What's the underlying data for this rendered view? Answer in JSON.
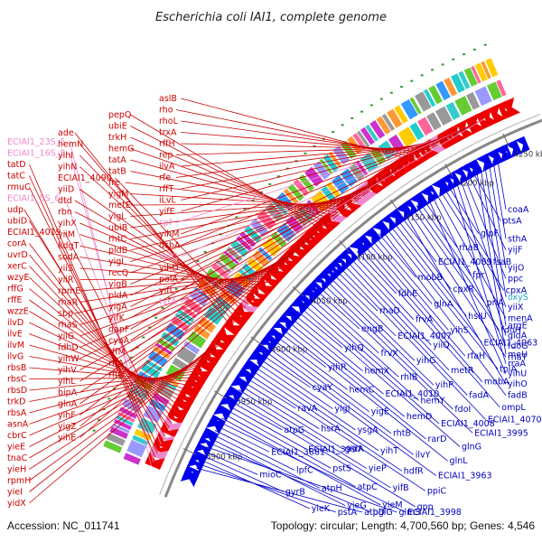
{
  "title": "Escherichia coli IAI1, complete genome",
  "footer": {
    "accession": "Accession: NC_011741",
    "topology": "Topology: circular; Length: 4,700,560 bp; Genes: 4,546"
  },
  "colors": {
    "forward": "#ee0000",
    "reverse": "#0000ee",
    "rna": "#ee88cc",
    "backbone": "#888888"
  },
  "ticks": [
    "3900 kbp",
    "3950 kbp",
    "4000 kbp",
    "4050 kbp",
    "4100 kbp",
    "4150 kbp",
    "4200 kbp",
    "4250 kbp"
  ],
  "genes_left": [
    {
      "t": "ECIAI1_23S_5",
      "c": "pink"
    },
    {
      "t": "ECIAI1_16S_5",
      "c": "pink"
    },
    {
      "t": "tatD",
      "c": "red"
    },
    {
      "t": "tatC",
      "c": "red"
    },
    {
      "t": "rmuC",
      "c": "red"
    },
    {
      "t": "ECIAI1_5S_6",
      "c": "pink"
    },
    {
      "t": "udp",
      "c": "red"
    },
    {
      "t": "ubiD",
      "c": "red"
    },
    {
      "t": "ECIAI1_4019",
      "c": "red"
    },
    {
      "t": "corA",
      "c": "red"
    },
    {
      "t": "uvrD",
      "c": "red"
    },
    {
      "t": "xerC",
      "c": "red"
    },
    {
      "t": "wzyE",
      "c": "red"
    },
    {
      "t": "rffG",
      "c": "red"
    },
    {
      "t": "rffE",
      "c": "red"
    },
    {
      "t": "wzzE",
      "c": "red"
    },
    {
      "t": "ilvD",
      "c": "red"
    },
    {
      "t": "ilvE",
      "c": "red"
    },
    {
      "t": "ilvM",
      "c": "red"
    },
    {
      "t": "ilvG",
      "c": "red"
    },
    {
      "t": "rbsB",
      "c": "red"
    },
    {
      "t": "rbsC",
      "c": "red"
    },
    {
      "t": "rbsD",
      "c": "red"
    },
    {
      "t": "trkD",
      "c": "red"
    },
    {
      "t": "rbsA",
      "c": "red"
    },
    {
      "t": "asnA",
      "c": "red"
    },
    {
      "t": "cbrC",
      "c": "red"
    },
    {
      "t": "yieE",
      "c": "red"
    },
    {
      "t": "tnaC",
      "c": "red"
    },
    {
      "t": "yieH",
      "c": "red"
    },
    {
      "t": "rpmH",
      "c": "red"
    },
    {
      "t": "yieI",
      "c": "red"
    },
    {
      "t": "yidX",
      "c": "red"
    },
    {
      "t": "yidP",
      "c": "red"
    },
    {
      "t": "ade",
      "c": "red"
    },
    {
      "t": "hemN",
      "c": "red"
    },
    {
      "t": "yihI",
      "c": "red"
    },
    {
      "t": "yihN",
      "c": "red"
    },
    {
      "t": "ECIAI1_4090",
      "c": "red"
    },
    {
      "t": "yiiD",
      "c": "red"
    },
    {
      "t": "dtd",
      "c": "red"
    },
    {
      "t": "rbn",
      "c": "red"
    },
    {
      "t": "yihX",
      "c": "red"
    },
    {
      "t": "yiiM",
      "c": "red"
    },
    {
      "t": "kdgT",
      "c": "red"
    },
    {
      "t": "sodA",
      "c": "red"
    },
    {
      "t": "yiiS",
      "c": "red"
    },
    {
      "t": "yiiR",
      "c": "red"
    },
    {
      "t": "rpmE",
      "c": "red"
    },
    {
      "t": "rhaR",
      "c": "red"
    },
    {
      "t": "sbp",
      "c": "red"
    },
    {
      "t": "rhaS",
      "c": "red"
    },
    {
      "t": "yiiG",
      "c": "red"
    },
    {
      "t": "fdhD",
      "c": "red"
    },
    {
      "t": "yihW",
      "c": "red"
    },
    {
      "t": "yihV",
      "c": "red"
    },
    {
      "t": "yihL",
      "c": "red"
    },
    {
      "t": "bipA",
      "c": "red"
    },
    {
      "t": "glnA",
      "c": "red"
    },
    {
      "t": "yihF",
      "c": "red"
    },
    {
      "t": "yigZ",
      "c": "red"
    },
    {
      "t": "yihE",
      "c": "red"
    },
    {
      "t": "pepQ",
      "c": "red"
    },
    {
      "t": "ubiE",
      "c": "red"
    },
    {
      "t": "trkH",
      "c": "red"
    },
    {
      "t": "hemG",
      "c": "red"
    },
    {
      "t": "tatA",
      "c": "red"
    },
    {
      "t": "tatB",
      "c": "red"
    },
    {
      "t": "fre",
      "c": "red"
    },
    {
      "t": "yigM",
      "c": "red"
    },
    {
      "t": "metE",
      "c": "red"
    },
    {
      "t": "yigL",
      "c": "red"
    },
    {
      "t": "ubiB",
      "c": "red"
    },
    {
      "t": "rhtC",
      "c": "red"
    },
    {
      "t": "pldB",
      "c": "red"
    },
    {
      "t": "yigI",
      "c": "red"
    },
    {
      "t": "recQ",
      "c": "red"
    },
    {
      "t": "yigB",
      "c": "red"
    },
    {
      "t": "pldA",
      "c": "red"
    },
    {
      "t": "yigA",
      "c": "red"
    },
    {
      "t": "yifK",
      "c": "red"
    },
    {
      "t": "dapF",
      "c": "red"
    },
    {
      "t": "cyaA",
      "c": "red"
    },
    {
      "t": "rffM",
      "c": "red"
    },
    {
      "t": "rffA",
      "c": "red"
    },
    {
      "t": "rffC",
      "c": "red"
    },
    {
      "t": "aslB",
      "c": "red"
    },
    {
      "t": "rho",
      "c": "red"
    },
    {
      "t": "rhoL",
      "c": "red"
    },
    {
      "t": "trxA",
      "c": "red"
    },
    {
      "t": "rffH",
      "c": "red"
    },
    {
      "t": "rep",
      "c": "red"
    },
    {
      "t": "ilvA",
      "c": "red"
    },
    {
      "t": "rfe",
      "c": "red"
    },
    {
      "t": "rffT",
      "c": "red"
    },
    {
      "t": "iLvL",
      "c": "red"
    },
    {
      "t": "yifE",
      "c": "red"
    },
    {
      "t": "spf",
      "c": "pink"
    },
    {
      "t": "yihM",
      "c": "red"
    },
    {
      "t": "dsbA",
      "c": "red"
    },
    {
      "t": "csrC",
      "c": "pink"
    },
    {
      "t": "yihD",
      "c": "red"
    },
    {
      "t": "polA",
      "c": "red"
    },
    {
      "t": "yifL",
      "c": "red"
    },
    {
      "t": "tyrA",
      "c": "pink"
    }
  ],
  "genes_right": [
    {
      "t": "coaA"
    },
    {
      "t": "sthA"
    },
    {
      "t": "yijO"
    },
    {
      "t": "oxyS",
      "c": "cyan"
    },
    {
      "t": "argE"
    },
    {
      "t": "meU"
    },
    {
      "t": "ptsA"
    },
    {
      "t": "yijF"
    },
    {
      "t": "ppc"
    },
    {
      "t": "yiiX"
    },
    {
      "t": "gldA"
    },
    {
      "t": "rraA"
    },
    {
      "t": "glpF"
    },
    {
      "t": "fsaB"
    },
    {
      "t": "cpxA"
    },
    {
      "t": "menA"
    },
    {
      "t": "fdoG"
    },
    {
      "t": "yihU"
    },
    {
      "t": "rhaB"
    },
    {
      "t": "fpr"
    },
    {
      "t": "priA"
    },
    {
      "t": "fdoH"
    },
    {
      "t": "rhaT"
    },
    {
      "t": "yihO"
    },
    {
      "t": "ECIAI1_4089"
    },
    {
      "t": "cpxR"
    },
    {
      "t": "hslU"
    },
    {
      "t": "ECIAI1_4063"
    },
    {
      "t": "tpiA"
    },
    {
      "t": "fadB"
    },
    {
      "t": "mobB"
    },
    {
      "t": "glnA"
    },
    {
      "t": "yihS"
    },
    {
      "t": "rfaH"
    },
    {
      "t": "mobA"
    },
    {
      "t": "ompL"
    },
    {
      "t": "fdhE"
    },
    {
      "t": "frvA"
    },
    {
      "t": "yiiQ"
    },
    {
      "t": "metR"
    },
    {
      "t": "fadA"
    },
    {
      "t": "ECIAI1_4070"
    },
    {
      "t": "rhaD"
    },
    {
      "t": "ECIAI1_4007"
    },
    {
      "t": "yihG"
    },
    {
      "t": "yihP"
    },
    {
      "t": "fdoI"
    },
    {
      "t": "ECIAI1_3995"
    },
    {
      "t": "engB"
    },
    {
      "t": "frvX"
    },
    {
      "t": "rhlB"
    },
    {
      "t": "hemY"
    },
    {
      "t": "ECIAI1_4008"
    },
    {
      "t": "glnG"
    },
    {
      "t": "yihQ"
    },
    {
      "t": "hemX"
    },
    {
      "t": "ECIAI1_4010"
    },
    {
      "t": "hemD"
    },
    {
      "t": "rarD"
    },
    {
      "t": "glnL"
    },
    {
      "t": "yihR"
    },
    {
      "t": "hemC"
    },
    {
      "t": "yigE"
    },
    {
      "t": "rhtB"
    },
    {
      "t": "ilvY"
    },
    {
      "t": "ECIAI1_3963"
    },
    {
      "t": "cyaY"
    },
    {
      "t": "yigI"
    },
    {
      "t": "ysgA"
    },
    {
      "t": "yihT"
    },
    {
      "t": "hdfR"
    },
    {
      "t": "ppiC"
    },
    {
      "t": "ravA"
    },
    {
      "t": "hsrA"
    },
    {
      "t": "gidA"
    },
    {
      "t": "yieP"
    },
    {
      "t": "yifB"
    },
    {
      "t": "gpp"
    },
    {
      "t": "atpG"
    },
    {
      "t": "ECIAI1_3997"
    },
    {
      "t": "pstS"
    },
    {
      "t": "atpC"
    },
    {
      "t": "yieM"
    },
    {
      "t": "ECIAI1_3998"
    },
    {
      "t": "ECIAI1_3881"
    },
    {
      "t": "lpfC"
    },
    {
      "t": "atpH"
    },
    {
      "t": "yieG"
    },
    {
      "t": "bglG"
    },
    {
      "t": "glmS"
    },
    {
      "t": "mioC"
    },
    {
      "t": "gyrB"
    },
    {
      "t": "yieK"
    },
    {
      "t": "pstA"
    },
    {
      "t": "atpD"
    }
  ]
}
